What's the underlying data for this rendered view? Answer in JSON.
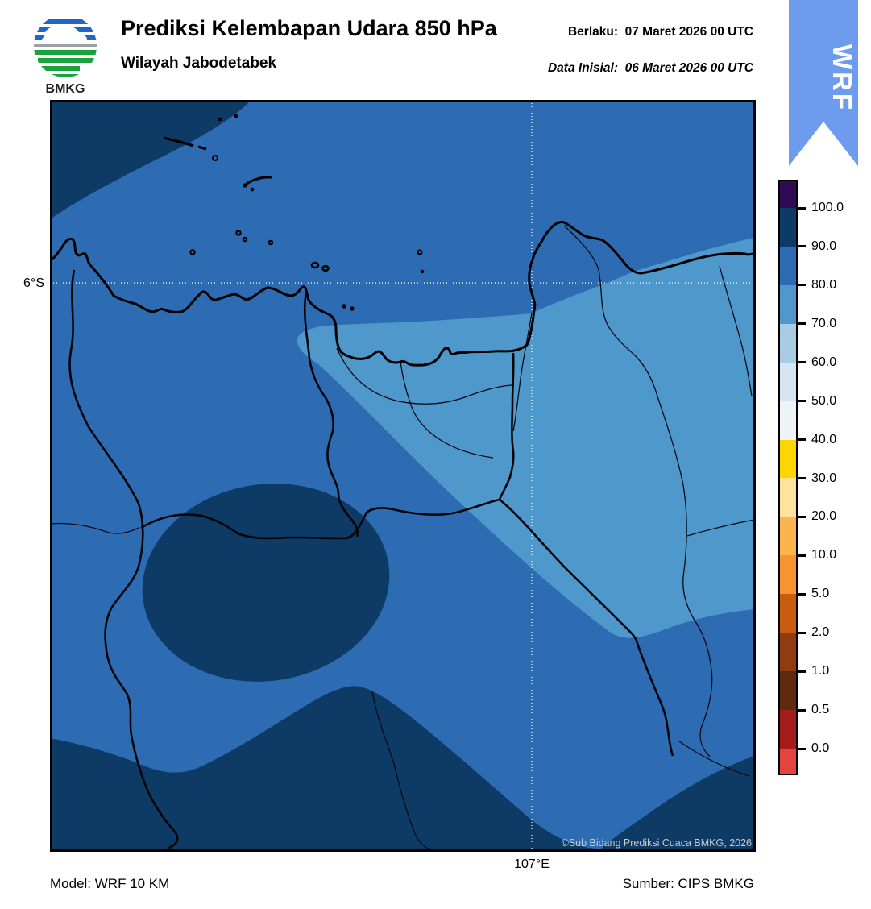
{
  "header": {
    "title": "Prediksi Kelembapan Udara 850 hPa",
    "subtitle": "Wilayah Jabodetabek",
    "valid_line": "Berlaku:  07 Maret 2026 00 UTC",
    "init_line": "Data Inisial:  06 Maret 2026 00 UTC",
    "logo_text": "BMKG",
    "ribbon": {
      "label": "WRF",
      "color": "#6d9cee"
    }
  },
  "map": {
    "lat_label": "6°S",
    "lon_label": "107°E",
    "copyright": "©Sub Bidang Prediksi Cuaca BMKG, 2026",
    "colors": {
      "humidity_80_90": "#2d6cb3",
      "humidity_90_100": "#0e3a66",
      "humidity_70_80": "#4e98cc",
      "coastline": "#000000",
      "gridline": "#ffffff"
    },
    "regions": [
      {
        "name": "northwest-sea-blob",
        "humidity_range": "90-100"
      },
      {
        "name": "base",
        "humidity_range": "80-90"
      },
      {
        "name": "coastal-east-band",
        "humidity_range": "70-80"
      },
      {
        "name": "center-ellipse",
        "humidity_range": "90-100"
      },
      {
        "name": "south-band",
        "humidity_range": "90-100"
      },
      {
        "name": "southeast-corner",
        "humidity_range": "90-100"
      }
    ]
  },
  "colorbar": {
    "tick_labels": [
      "100.0",
      "90.0",
      "80.0",
      "70.0",
      "60.0",
      "50.0",
      "40.0",
      "30.0",
      "20.0",
      "10.0",
      "5.0",
      "2.0",
      "1.0",
      "0.5",
      "0.0"
    ],
    "segment_colors": [
      "#2e0b52",
      "#0e3a66",
      "#2d6cb3",
      "#4e98cc",
      "#a8cce3",
      "#d5e5f2",
      "#eef3f8",
      "#ffd500",
      "#fde39b",
      "#fdb44e",
      "#f7942d",
      "#c95c0e",
      "#8f3c10",
      "#5e2a0d",
      "#a51c1c",
      "#e5443c"
    ]
  },
  "footer": {
    "model": "Model: WRF 10 KM",
    "source": "Sumber: CIPS BMKG"
  }
}
